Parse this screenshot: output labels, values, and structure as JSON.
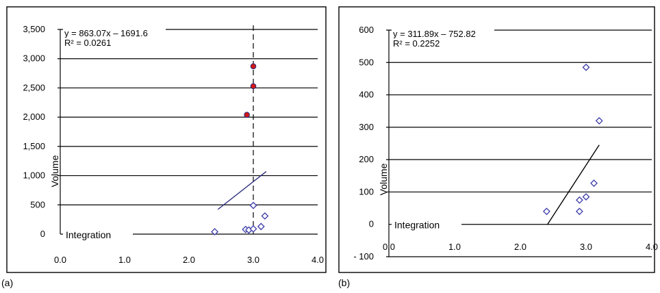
{
  "panels": [
    {
      "caption": "(a)",
      "equation": "y   = 863.07x – 1691.6",
      "r2": "R² = 0.0261",
      "inline_label": "Integration",
      "chart_data": {
        "type": "scatter",
        "ylabel": "Volume",
        "xlim": [
          0,
          4
        ],
        "ylim": [
          0,
          3500
        ],
        "x_ticks": [
          "0.0",
          "1.0",
          "2.0",
          "3.0",
          "4.0"
        ],
        "y_ticks": [
          "0",
          "500",
          "1,000",
          "1,500",
          "2,000",
          "2,500",
          "3,000",
          "3,500"
        ],
        "y_tick_values": [
          0,
          500,
          1000,
          1500,
          2000,
          2500,
          3000,
          3500
        ],
        "vline_x": 3.0,
        "points": [
          {
            "x": 2.4,
            "y": 40
          },
          {
            "x": 2.88,
            "y": 80
          },
          {
            "x": 2.93,
            "y": 70
          },
          {
            "x": 3.0,
            "y": 90
          },
          {
            "x": 3.0,
            "y": 490
          },
          {
            "x": 3.12,
            "y": 130
          },
          {
            "x": 3.18,
            "y": 310
          }
        ],
        "red_points": [
          {
            "x": 2.9,
            "y": 2040
          },
          {
            "x": 3.0,
            "y": 2530
          },
          {
            "x": 3.0,
            "y": 2870
          }
        ],
        "trendline": {
          "x1": 2.45,
          "x2": 3.2,
          "slope": 863.07,
          "intercept": -1691.6
        },
        "grid": true
      }
    },
    {
      "caption": "(b)",
      "equation": "y   = 311.89x – 752.82",
      "r2": "R² = 0.2252",
      "inline_label": "Integration",
      "chart_data": {
        "type": "scatter",
        "ylabel": "Volume",
        "xlim": [
          0,
          4
        ],
        "ylim": [
          -100,
          600
        ],
        "x_ticks": [
          "0.0",
          "1.0",
          "2.0",
          "3.0",
          "4.0"
        ],
        "y_ticks": [
          "- 100",
          "0",
          "100",
          "200",
          "300",
          "400",
          "500",
          "600"
        ],
        "y_tick_values": [
          -100,
          0,
          100,
          200,
          300,
          400,
          500,
          600
        ],
        "points": [
          {
            "x": 2.4,
            "y": 40
          },
          {
            "x": 2.9,
            "y": 75
          },
          {
            "x": 2.9,
            "y": 40
          },
          {
            "x": 3.0,
            "y": 85
          },
          {
            "x": 3.0,
            "y": 485
          },
          {
            "x": 3.12,
            "y": 127
          },
          {
            "x": 3.2,
            "y": 320
          }
        ],
        "trendline": {
          "x1": 2.41,
          "x2": 3.2,
          "slope": 311.89,
          "intercept": -752.82
        },
        "grid": true
      }
    }
  ]
}
